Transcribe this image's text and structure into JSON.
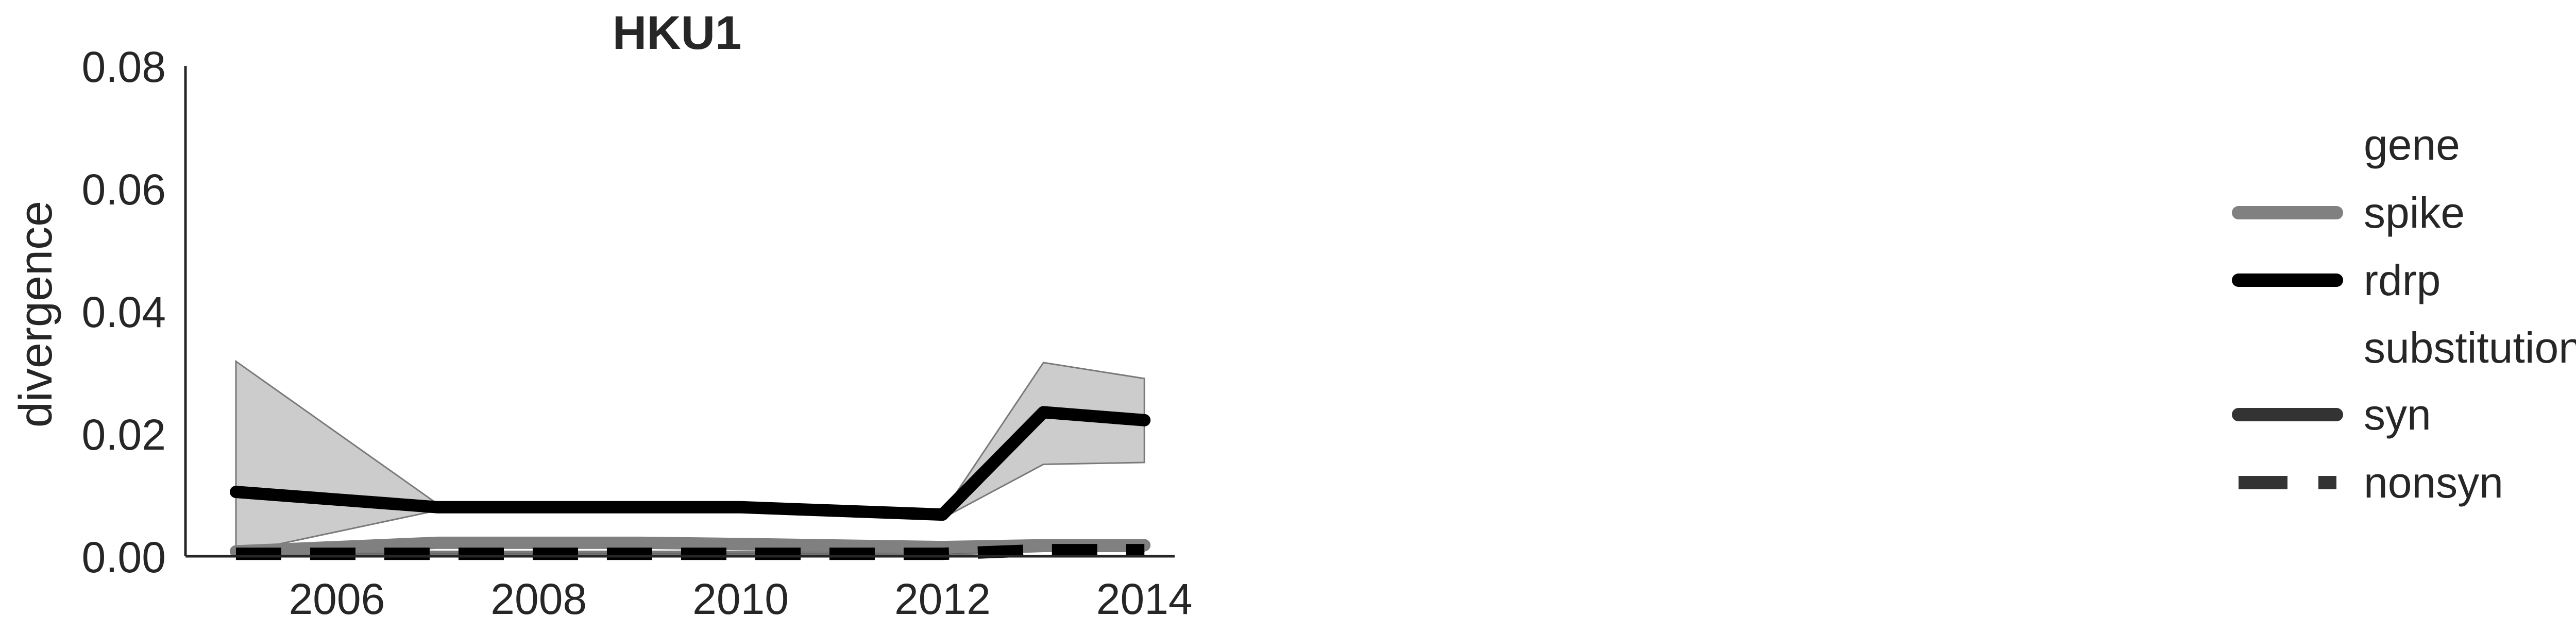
{
  "chart_data": {
    "type": "line",
    "title": "HKU1",
    "xlabel": "",
    "ylabel": "divergence",
    "xlim": [
      2004.5,
      2014.3
    ],
    "ylim": [
      0.0,
      0.08
    ],
    "xticks": [
      "2006",
      "2008",
      "2010",
      "2012",
      "2014"
    ],
    "yticks": [
      "0.00",
      "0.02",
      "0.04",
      "0.06",
      "0.08"
    ],
    "grid": false,
    "legend_position": "right",
    "legend": {
      "gene_title": "gene",
      "gene_entries": [
        {
          "label": "spike",
          "color": "#808080"
        },
        {
          "label": "rdrp",
          "color": "#000000"
        }
      ],
      "substitution_title": "substitution",
      "substitution_entries": [
        {
          "label": "syn",
          "style": "solid"
        },
        {
          "label": "nonsyn",
          "style": "dashed"
        }
      ]
    },
    "series": [
      {
        "gene": "rdrp",
        "substitution": "syn",
        "color": "#000000",
        "style": "solid",
        "x": [
          2005,
          2007,
          2009,
          2010,
          2012,
          2013,
          2014
        ],
        "y": [
          0.0105,
          0.008,
          0.008,
          0.008,
          0.0068,
          0.0235,
          0.0222
        ],
        "ci_lower": [
          0.0005,
          0.0075,
          0.0075,
          0.0075,
          0.0062,
          0.015,
          0.0153
        ],
        "ci_upper": [
          0.0318,
          0.0085,
          0.0085,
          0.0085,
          0.007,
          0.0316,
          0.029
        ]
      },
      {
        "gene": "spike",
        "substitution": "syn",
        "color": "#808080",
        "style": "solid",
        "x": [
          2005,
          2007,
          2009,
          2010,
          2012,
          2013,
          2014
        ],
        "y": [
          0.0008,
          0.0022,
          0.0022,
          0.002,
          0.0015,
          0.0018,
          0.0018
        ],
        "ci_lower": [
          0.0003,
          0.0018,
          0.0018,
          0.0016,
          0.0011,
          0.0013,
          0.0013
        ],
        "ci_upper": [
          0.0012,
          0.0028,
          0.0028,
          0.0025,
          0.002,
          0.0024,
          0.0024
        ]
      },
      {
        "gene": "spike",
        "substitution": "nonsyn",
        "color": "#808080",
        "style": "dashed",
        "x": [
          2005,
          2007,
          2009,
          2010,
          2012,
          2013,
          2014
        ],
        "y": [
          0.0005,
          0.0006,
          0.0006,
          0.0006,
          0.0005,
          0.0012,
          0.0012
        ],
        "ci_lower": [
          0.0003,
          0.0004,
          0.0004,
          0.0004,
          0.0003,
          0.0009,
          0.0009
        ],
        "ci_upper": [
          0.0007,
          0.0008,
          0.0008,
          0.0008,
          0.0007,
          0.0015,
          0.0015
        ]
      },
      {
        "gene": "rdrp",
        "substitution": "nonsyn",
        "color": "#000000",
        "style": "dashed",
        "x": [
          2005,
          2007,
          2009,
          2010,
          2012,
          2013,
          2014
        ],
        "y": [
          0.0004,
          0.0004,
          0.0004,
          0.0004,
          0.0004,
          0.001,
          0.001
        ],
        "ci_lower": [
          0.0002,
          0.0002,
          0.0002,
          0.0002,
          0.0002,
          0.0008,
          0.0008
        ],
        "ci_upper": [
          0.0006,
          0.0006,
          0.0006,
          0.0006,
          0.0006,
          0.0012,
          0.0012
        ]
      }
    ]
  }
}
